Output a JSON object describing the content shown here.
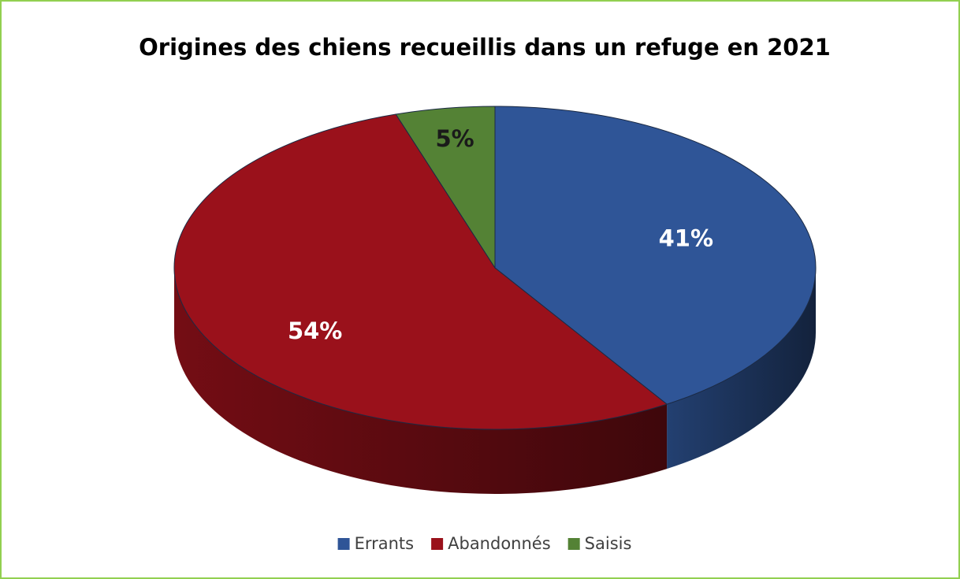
{
  "chart_data": {
    "type": "pie",
    "title": "Origines des chiens recueillis dans un refuge en 2021",
    "categories": [
      "Errants",
      "Abandonnés",
      "Saisis"
    ],
    "values": [
      41,
      54,
      5
    ],
    "value_labels": [
      "41%",
      "54%",
      "5%"
    ],
    "colors": [
      "#2f5597",
      "#9a111b",
      "#548235"
    ],
    "label_colors": [
      "#ffffff",
      "#ffffff",
      "#1a1a1a"
    ],
    "legend": "bottom"
  }
}
